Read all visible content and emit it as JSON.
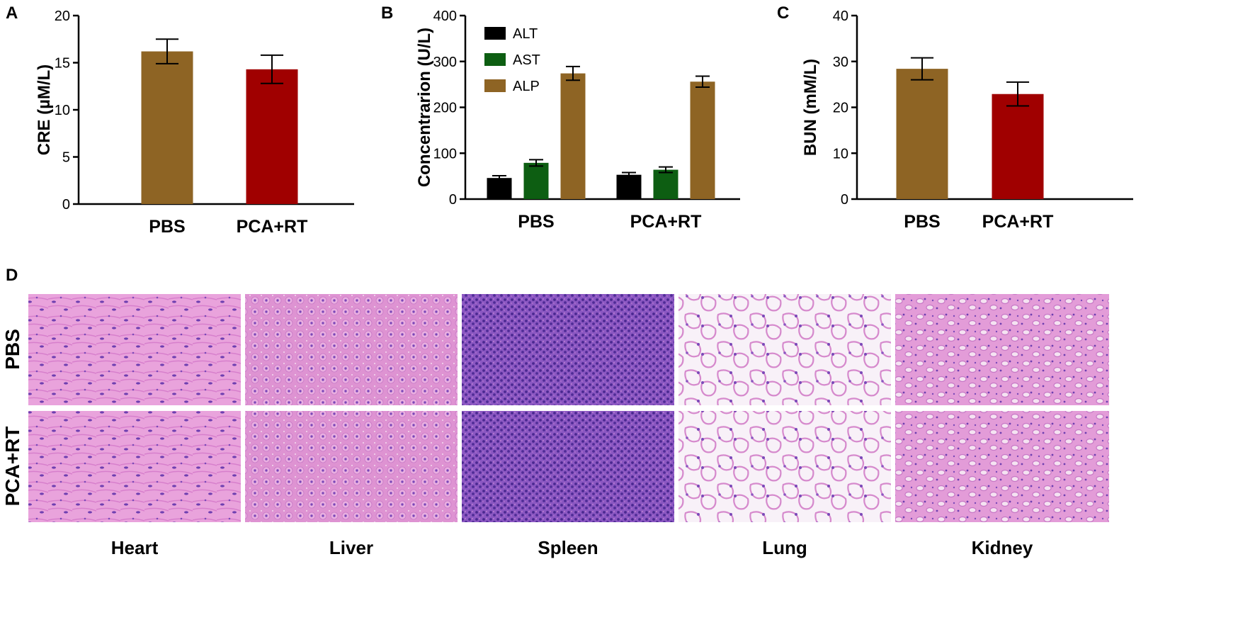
{
  "panel_letters": {
    "a": "A",
    "b": "B",
    "c": "C",
    "d": "D"
  },
  "colors": {
    "brown": "#8E6424",
    "red": "#A00000",
    "black": "#000000",
    "green": "#0D5E12",
    "tissue_pink": "#E59AD6",
    "tissue_purple": "#8E55C4",
    "tissue_white": "#F6EEF6"
  },
  "chart_data": [
    {
      "id": "A",
      "type": "bar",
      "categories": [
        "PBS",
        "PCA+RT"
      ],
      "values": [
        16.2,
        14.3
      ],
      "errors": [
        1.3,
        1.5
      ],
      "ylabel": "CRE (µM/L)",
      "ylim": [
        0,
        20
      ],
      "yticks": [
        "0",
        "5",
        "10",
        "15",
        "20"
      ],
      "bar_colors": [
        "#8E6424",
        "#A00000"
      ]
    },
    {
      "id": "B",
      "type": "bar",
      "categories": [
        "PBS",
        "PCA+RT"
      ],
      "series": [
        {
          "name": "ALT",
          "color": "#000000",
          "values": [
            46,
            53
          ],
          "errors": [
            5,
            5
          ]
        },
        {
          "name": "AST",
          "color": "#0D5E12",
          "values": [
            79,
            64
          ],
          "errors": [
            7,
            6
          ]
        },
        {
          "name": "ALP",
          "color": "#8E6424",
          "values": [
            274,
            256
          ],
          "errors": [
            15,
            12
          ]
        }
      ],
      "ylabel": "Concentrarion (U/L)",
      "ylim": [
        0,
        400
      ],
      "yticks": [
        "0",
        "100",
        "200",
        "300",
        "400"
      ],
      "legend": "top-left"
    },
    {
      "id": "C",
      "type": "bar",
      "categories": [
        "PBS",
        "PCA+RT"
      ],
      "values": [
        28.4,
        22.9
      ],
      "errors": [
        2.4,
        2.6
      ],
      "ylabel": "BUN (mM/L)",
      "ylim": [
        0,
        40
      ],
      "yticks": [
        "0",
        "10",
        "20",
        "30",
        "40"
      ],
      "bar_colors": [
        "#8E6424",
        "#A00000"
      ]
    }
  ],
  "histology": {
    "rows": [
      "PBS",
      "PCA+RT"
    ],
    "columns": [
      "Heart",
      "Liver",
      "Spleen",
      "Lung",
      "Kidney"
    ]
  }
}
